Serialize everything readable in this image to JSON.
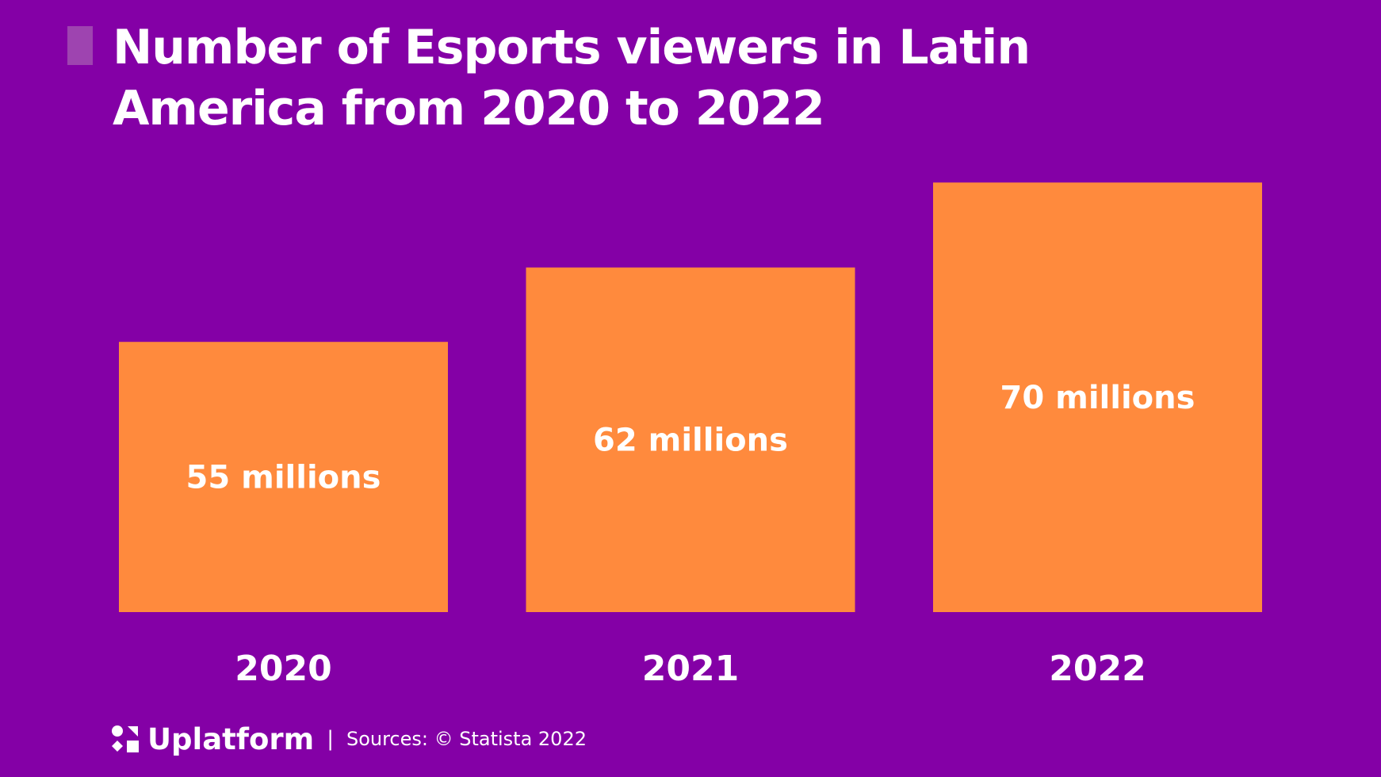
{
  "colors": {
    "background": "#8400a6",
    "bar": "#ff8a3d",
    "accent": "#9e44b0",
    "text": "#ffffff"
  },
  "footer": {
    "brand": "Uplatform",
    "brand_icon": "uplatform-logo-icon",
    "separator": "|",
    "source": "Sources: © Statista 2022"
  },
  "chart_data": {
    "type": "bar",
    "title": "Number of Esports viewers in Latin America from 2020 to 2022",
    "categories": [
      "2020",
      "2021",
      "2022"
    ],
    "values": [
      55,
      62,
      70
    ],
    "data_labels": [
      "55 millions",
      "62 millions",
      "70 millions"
    ],
    "xlabel": "",
    "ylabel": "",
    "grid": false,
    "legend": "none"
  }
}
